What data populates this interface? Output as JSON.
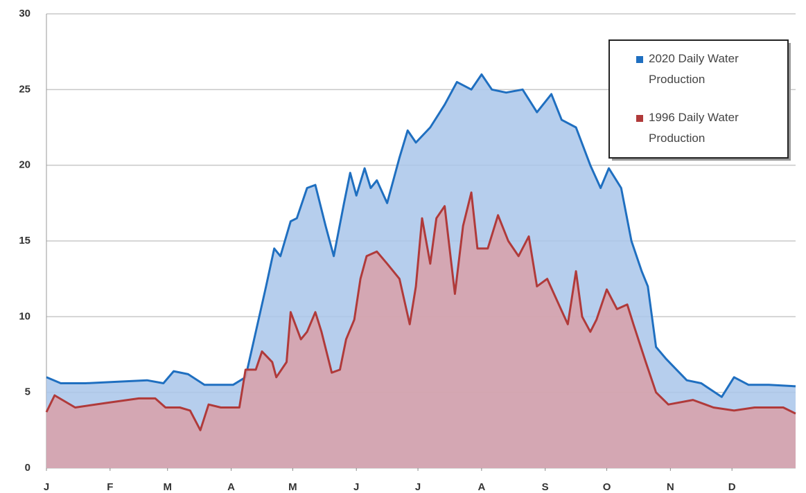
{
  "chart_data": {
    "type": "area",
    "series": [
      {
        "name": "2020 Daily Water Production",
        "color": "#1f6fc0",
        "fill": "#a9c6ea",
        "x": [
          1,
          8,
          20,
          35,
          50,
          58,
          63,
          70,
          78,
          85,
          92,
          98,
          103,
          108,
          112,
          115,
          120,
          123,
          128,
          132,
          137,
          141,
          146,
          149,
          152,
          156,
          159,
          162,
          167,
          173,
          177,
          181,
          188,
          195,
          201,
          208,
          213,
          218,
          225,
          233,
          240,
          247,
          252,
          259,
          266,
          271,
          275,
          281,
          286,
          291,
          294,
          298,
          303,
          308,
          313,
          320,
          330,
          336,
          343,
          353,
          366
        ],
        "values": [
          6.0,
          5.6,
          5.6,
          5.7,
          5.8,
          5.6,
          6.4,
          6.2,
          5.5,
          5.5,
          5.5,
          6.0,
          9,
          12,
          14.5,
          14,
          16.3,
          16.5,
          18.5,
          18.7,
          16,
          14,
          17.5,
          19.5,
          18,
          19.8,
          18.5,
          19,
          17.5,
          20.5,
          22.3,
          21.5,
          22.5,
          24,
          25.5,
          25,
          26,
          25,
          24.8,
          25,
          23.5,
          24.7,
          23,
          22.5,
          20,
          18.5,
          19.8,
          18.5,
          15,
          13,
          12,
          8,
          7.2,
          6.5,
          5.8,
          5.6,
          4.7,
          6,
          5.5,
          5.5,
          5.4
        ]
      },
      {
        "name": "1996 Daily Water Production",
        "color": "#b03a3a",
        "fill": "#d9a0a8",
        "x": [
          1,
          5,
          15,
          30,
          46,
          54,
          59,
          66,
          71,
          76,
          80,
          86,
          95,
          98,
          103,
          106,
          111,
          113,
          118,
          120,
          125,
          128,
          132,
          135,
          140,
          144,
          147,
          151,
          154,
          157,
          162,
          167,
          173,
          178,
          181,
          184,
          188,
          191,
          195,
          200,
          204,
          208,
          211,
          216,
          221,
          226,
          231,
          236,
          240,
          245,
          250,
          255,
          259,
          262,
          266,
          269,
          274,
          279,
          284,
          287,
          293,
          298,
          304,
          316,
          326,
          336,
          346,
          360,
          366
        ],
        "values": [
          3.7,
          4.8,
          4.0,
          4.3,
          4.6,
          4.6,
          4.0,
          4.0,
          3.8,
          2.5,
          4.2,
          4.0,
          4.0,
          6.5,
          6.5,
          7.7,
          7.0,
          6.0,
          7.0,
          10.3,
          8.5,
          9,
          10.3,
          9,
          6.3,
          6.5,
          8.5,
          9.8,
          12.5,
          14,
          14.3,
          13.5,
          12.5,
          9.5,
          12,
          16.5,
          13.5,
          16.5,
          17.3,
          11.5,
          16,
          18.2,
          14.5,
          14.5,
          16.7,
          15,
          14,
          15.3,
          12,
          12.5,
          11,
          9.5,
          13,
          10,
          9,
          9.8,
          11.8,
          10.5,
          10.8,
          9.5,
          7,
          5,
          4.2,
          4.5,
          4,
          3.8,
          4.0,
          4.0,
          3.6
        ]
      }
    ],
    "xlim": [
      1,
      366
    ],
    "xticks": [
      {
        "value": 1,
        "label": "J"
      },
      {
        "value": 32,
        "label": "F"
      },
      {
        "value": 60,
        "label": "M"
      },
      {
        "value": 91,
        "label": "A"
      },
      {
        "value": 121,
        "label": "M"
      },
      {
        "value": 152,
        "label": "J"
      },
      {
        "value": 182,
        "label": "J"
      },
      {
        "value": 213,
        "label": "A"
      },
      {
        "value": 244,
        "label": "S"
      },
      {
        "value": 274,
        "label": "O"
      },
      {
        "value": 305,
        "label": "N"
      },
      {
        "value": 335,
        "label": "D"
      }
    ],
    "ylim": [
      0,
      30
    ],
    "yticks": [
      0,
      5,
      10,
      15,
      20,
      25,
      30
    ],
    "grid": true,
    "legend": "top-right"
  }
}
